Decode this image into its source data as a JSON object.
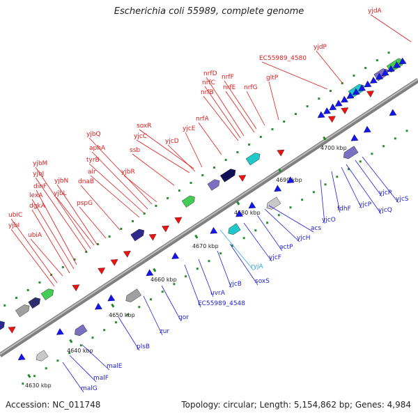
{
  "title": "Escherichia coli 55989, complete genome",
  "footer": {
    "accession": "Accession: NC_011748",
    "topology": "Topology: circular; Length: 5,154,862 bp; Genes: 4,984"
  },
  "colors": {
    "forward_label": "#dd1c1c",
    "reverse_label": "#1e1ed8",
    "rna_label": "#33a8e0",
    "forward_gene": "#ee1111",
    "reverse_gene": "#1414ee",
    "backbone": "#888888",
    "tick": "#1e8a2a"
  },
  "ticks": [
    "4630 kbp",
    "4640 kbp",
    "4650 kbp",
    "4660 kbp",
    "4670 kbp",
    "4680 kbp",
    "4690 kbp",
    "4700 kbp"
  ],
  "forward_labels": [
    "yjdA",
    "yjdP",
    "EC55989_4580",
    "gltP",
    "nrfG",
    "nrfF",
    "nrfE",
    "nrfD",
    "nrfC",
    "nrfB",
    "nrfA",
    "soxR",
    "yjcC",
    "ssb",
    "yjcD",
    "yjcE",
    "yjbQ",
    "aphA",
    "tyrB",
    "alr",
    "yjbR",
    "yjbM",
    "yjbJ",
    "yjbN",
    "dnaB",
    "pspG",
    "dinF",
    "yjbL",
    "lexA",
    "dgkA",
    "ubiC",
    "yjbI",
    "ubiA"
  ],
  "reverse_labels": [
    "yjcS",
    "yjcR",
    "yjcQ",
    "yjcP",
    "fdhF",
    "yjcO",
    "acs",
    "yjcH",
    "actP",
    "yjcF",
    "soxS",
    "yjcB",
    "uvrA",
    "EC55989_4548",
    "qor",
    "zur",
    "plsB",
    "malE",
    "malF",
    "malG"
  ],
  "rna_labels": [
    "ryjA"
  ]
}
